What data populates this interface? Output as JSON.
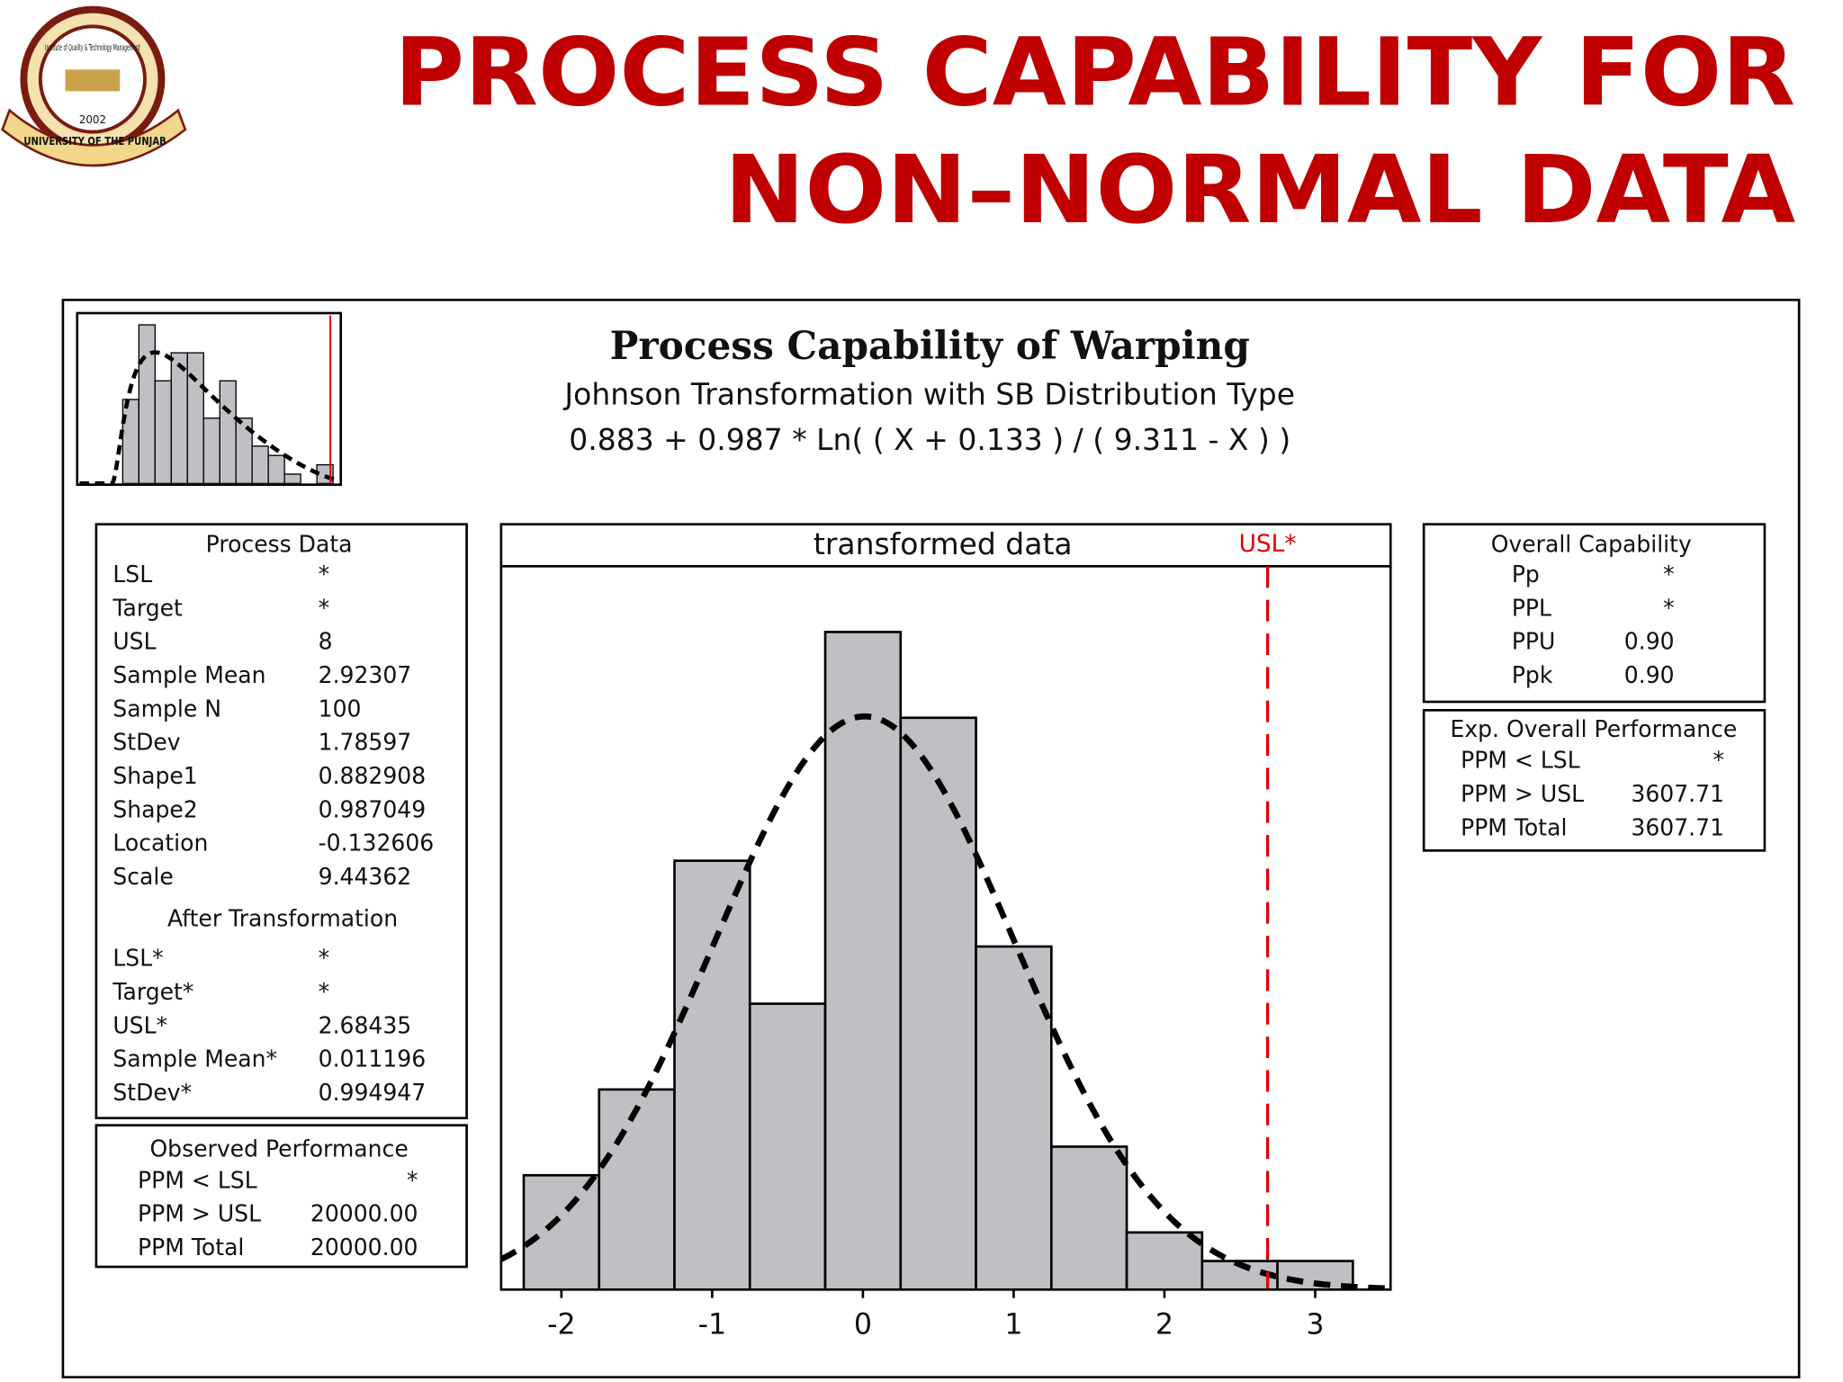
{
  "slide": {
    "title_lines": [
      "PROCESS CAPABILITY FOR",
      "NON–NORMAL DATA"
    ]
  },
  "logo": {
    "institute": "Institute of Quality & Technology Management",
    "year": "2002",
    "university": "UNIVERSITY OF THE PUNJAB"
  },
  "chart_header": {
    "title": "Process Capability of Warping",
    "subtitle": "Johnson Transformation with SB Distribution Type",
    "formula": "0.883 + 0.987 * Ln( ( X + 0.133 ) / ( 9.311 - X ) )"
  },
  "chart_data": [
    {
      "type": "histogram",
      "title": "transformed data",
      "bins": [
        -2.25,
        -1.75,
        -1.25,
        -0.75,
        -0.25,
        0.25,
        0.75,
        1.25,
        1.75,
        2.25,
        2.75,
        3.25
      ],
      "counts": [
        4,
        7,
        15,
        10,
        23,
        20,
        12,
        5,
        2,
        1,
        1
      ],
      "color": "#c0c0c4",
      "xlim": [
        -2.4,
        3.5
      ],
      "ylim": [
        0,
        25.3
      ],
      "xticks": [
        -2,
        -1,
        0,
        1,
        2,
        3
      ],
      "fit": {
        "kind": "normal",
        "mean": 0.011196,
        "sd": 0.994947,
        "n": 100
      },
      "ref_line": {
        "label": "USL*",
        "value": 2.68435,
        "color": "#e00000"
      }
    },
    {
      "type": "histogram",
      "bins": [
        0.3,
        0.9,
        1.5,
        2.1,
        2.7,
        3.3,
        3.9,
        4.5,
        5.1,
        5.7,
        6.3,
        6.9,
        7.5,
        8.1
      ],
      "counts": [
        9,
        17,
        11,
        14,
        14,
        7,
        11,
        7,
        4,
        3,
        1,
        0,
        2
      ],
      "color": "#c0c0c4",
      "xlim": [
        -1.3,
        8.3
      ],
      "ylim": [
        0,
        18
      ],
      "fit": {
        "kind": "johnson-sb",
        "gamma": 0.882908,
        "delta": 0.987049,
        "xi": -0.132606,
        "lambda": 9.44362,
        "n": 100
      },
      "ref_line": {
        "value": 8,
        "color": "#e00000"
      }
    }
  ],
  "process_data": {
    "title": "Process Data",
    "rows": [
      [
        "LSL",
        "*"
      ],
      [
        "Target",
        "*"
      ],
      [
        "USL",
        "8"
      ],
      [
        "Sample Mean",
        "2.92307"
      ],
      [
        "Sample N",
        "100"
      ],
      [
        "StDev",
        "1.78597"
      ],
      [
        "Shape1",
        "0.882908"
      ],
      [
        "Shape2",
        "0.987049"
      ],
      [
        "Location",
        "-0.132606"
      ],
      [
        "Scale",
        "9.44362"
      ]
    ],
    "after_title": "After Transformation",
    "after_rows": [
      [
        "LSL*",
        "*"
      ],
      [
        "Target*",
        "*"
      ],
      [
        "USL*",
        "2.68435"
      ],
      [
        "Sample Mean*",
        "0.011196"
      ],
      [
        "StDev*",
        "0.994947"
      ]
    ]
  },
  "observed_performance": {
    "title": "Observed Performance",
    "rows": [
      [
        "PPM < LSL",
        "*"
      ],
      [
        "PPM > USL",
        "20000.00"
      ],
      [
        "PPM Total",
        "20000.00"
      ]
    ]
  },
  "overall_capability": {
    "title": "Overall Capability",
    "rows": [
      [
        "Pp",
        "*"
      ],
      [
        "PPL",
        "*"
      ],
      [
        "PPU",
        "0.90"
      ],
      [
        "Ppk",
        "0.90"
      ]
    ]
  },
  "expected_performance": {
    "title": "Exp. Overall Performance",
    "rows": [
      [
        "PPM < LSL",
        "*"
      ],
      [
        "PPM > USL",
        "3607.71"
      ],
      [
        "PPM Total",
        "3607.71"
      ]
    ]
  }
}
